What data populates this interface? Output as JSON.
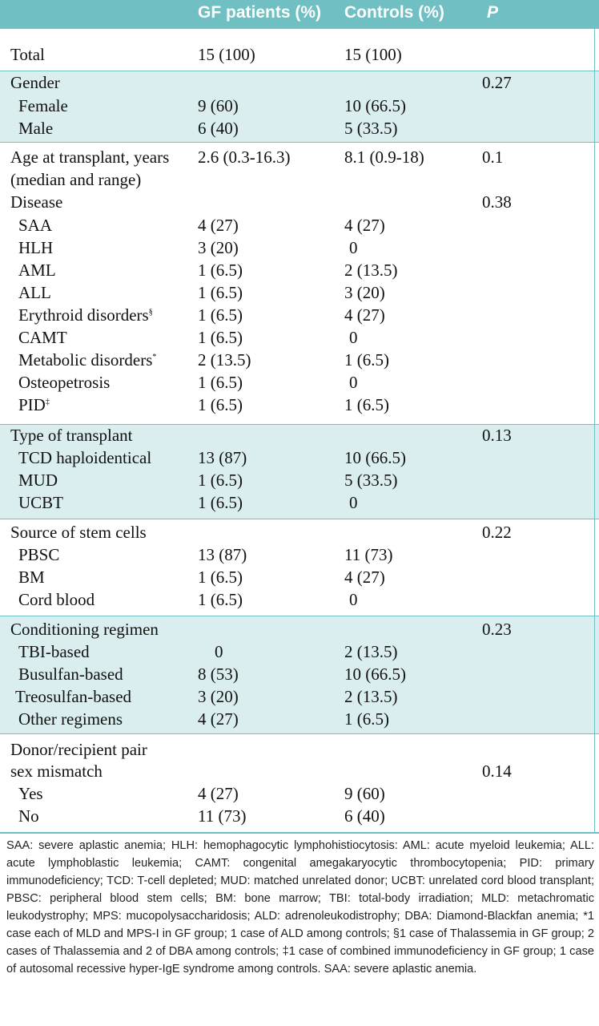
{
  "header": {
    "col1": "GF patients (%)",
    "col2": "Controls (%)",
    "col3": "P"
  },
  "rows": {
    "total": {
      "label": "Total",
      "gf": "15 (100)",
      "ctrl": "15 (100)"
    },
    "gender": {
      "label": "Gender",
      "p": "0.27"
    },
    "female": {
      "label": "Female",
      "gf": "9 (60)",
      "ctrl": "10 (66.5)"
    },
    "male": {
      "label": "Male",
      "gf": "6 (40)",
      "ctrl": "5 (33.5)"
    },
    "age": {
      "label": "Age at transplant, years",
      "label2": "(median and range)",
      "gf": "2.6 (0.3-16.3)",
      "ctrl": "8.1 (0.9-18)",
      "p": "0.1"
    },
    "disease": {
      "label": "Disease",
      "p": "0.38"
    },
    "saa": {
      "label": "SAA",
      "gf": "4 (27)",
      "ctrl": "4 (27)"
    },
    "hlh": {
      "label": "HLH",
      "gf": "3 (20)",
      "ctrl": "0"
    },
    "aml": {
      "label": "AML",
      "gf": "1 (6.5)",
      "ctrl": "2 (13.5)"
    },
    "all": {
      "label": "ALL",
      "gf": "1 (6.5)",
      "ctrl": "3 (20)"
    },
    "erythroid": {
      "label": "Erythroid disorders",
      "mark": "§",
      "gf": "1 (6.5)",
      "ctrl": "4 (27)"
    },
    "camt": {
      "label": "CAMT",
      "gf": "1 (6.5)",
      "ctrl": "0"
    },
    "metabolic": {
      "label": "Metabolic disorders",
      "mark": "*",
      "gf": "2 (13.5)",
      "ctrl": "1 (6.5)"
    },
    "osteopetrosis": {
      "label": "Osteopetrosis",
      "gf": "1 (6.5)",
      "ctrl": "0"
    },
    "pid": {
      "label": "PID",
      "mark": "‡",
      "gf": "1 (6.5)",
      "ctrl": "1 (6.5)"
    },
    "transplant": {
      "label": "Type of transplant",
      "p": "0.13"
    },
    "tcd": {
      "label": "TCD haploidentical",
      "gf": "13 (87)",
      "ctrl": "10 (66.5)"
    },
    "mud": {
      "label": "MUD",
      "gf": "1 (6.5)",
      "ctrl": "5 (33.5)"
    },
    "ucbt": {
      "label": "UCBT",
      "gf": "1 (6.5)",
      "ctrl": "0"
    },
    "source": {
      "label": "Source of stem cells",
      "p": "0.22"
    },
    "pbsc": {
      "label": "PBSC",
      "gf": "13 (87)",
      "ctrl": "11 (73)"
    },
    "bm": {
      "label": "BM",
      "gf": "1 (6.5)",
      "ctrl": "4 (27)"
    },
    "cord": {
      "label": "Cord blood",
      "gf": "1 (6.5)",
      "ctrl": "0"
    },
    "conditioning": {
      "label": "Conditioning regimen",
      "p": "0.23"
    },
    "tbi": {
      "label": "TBI-based",
      "gf": "0",
      "ctrl": "2 (13.5)"
    },
    "busulfan": {
      "label": "Busulfan-based",
      "gf": "8 (53)",
      "ctrl": "10 (66.5)"
    },
    "treosulfan": {
      "label": "Treosulfan-based",
      "gf": "3 (20)",
      "ctrl": "2 (13.5)"
    },
    "other": {
      "label": "Other regimens",
      "gf": "4 (27)",
      "ctrl": "1 (6.5)"
    },
    "donor": {
      "label": "Donor/recipient pair",
      "label2": "sex mismatch",
      "p": "0.14"
    },
    "yes": {
      "label": "Yes",
      "gf": "4 (27)",
      "ctrl": "9 (60)"
    },
    "no": {
      "label": "No",
      "gf": "11 (73)",
      "ctrl": "6 (40)"
    }
  },
  "footnote": "SAA: severe aplastic anemia; HLH: hemophagocytic lymphohistiocytosis: AML: acute myeloid leukemia; ALL: acute lymphoblastic leukemia; CAMT: congenital amegakaryocytic thrombocytopenia; PID: primary immunodeficiency; TCD: T-cell depleted; MUD: matched unrelated donor; UCBT: unrelated cord blood transplant; PBSC: peripheral blood stem cells; BM: bone marrow; TBI: total-body irradiation; MLD: metachromatic leukodystrophy; MPS: mucopolysaccharidosis; ALD: adrenoleukodistrophy; DBA: Diamond-Blackfan anemia; *1 case each of MLD and MPS-I in GF group; 1 case of ALD among controls; §1 case of Thalassemia in GF group; 2 cases of Thalassemia and 2 of DBA among controls; ‡1 case of combined immunodeficiency in GF group; 1 case of autosomal recessive hyper-IgE syndrome among controls. SAA: severe aplastic anemia.",
  "colors": {
    "header_bg": "#6fbfc3",
    "band_bg": "#dbeeef",
    "rule": "#6fbfc3"
  }
}
